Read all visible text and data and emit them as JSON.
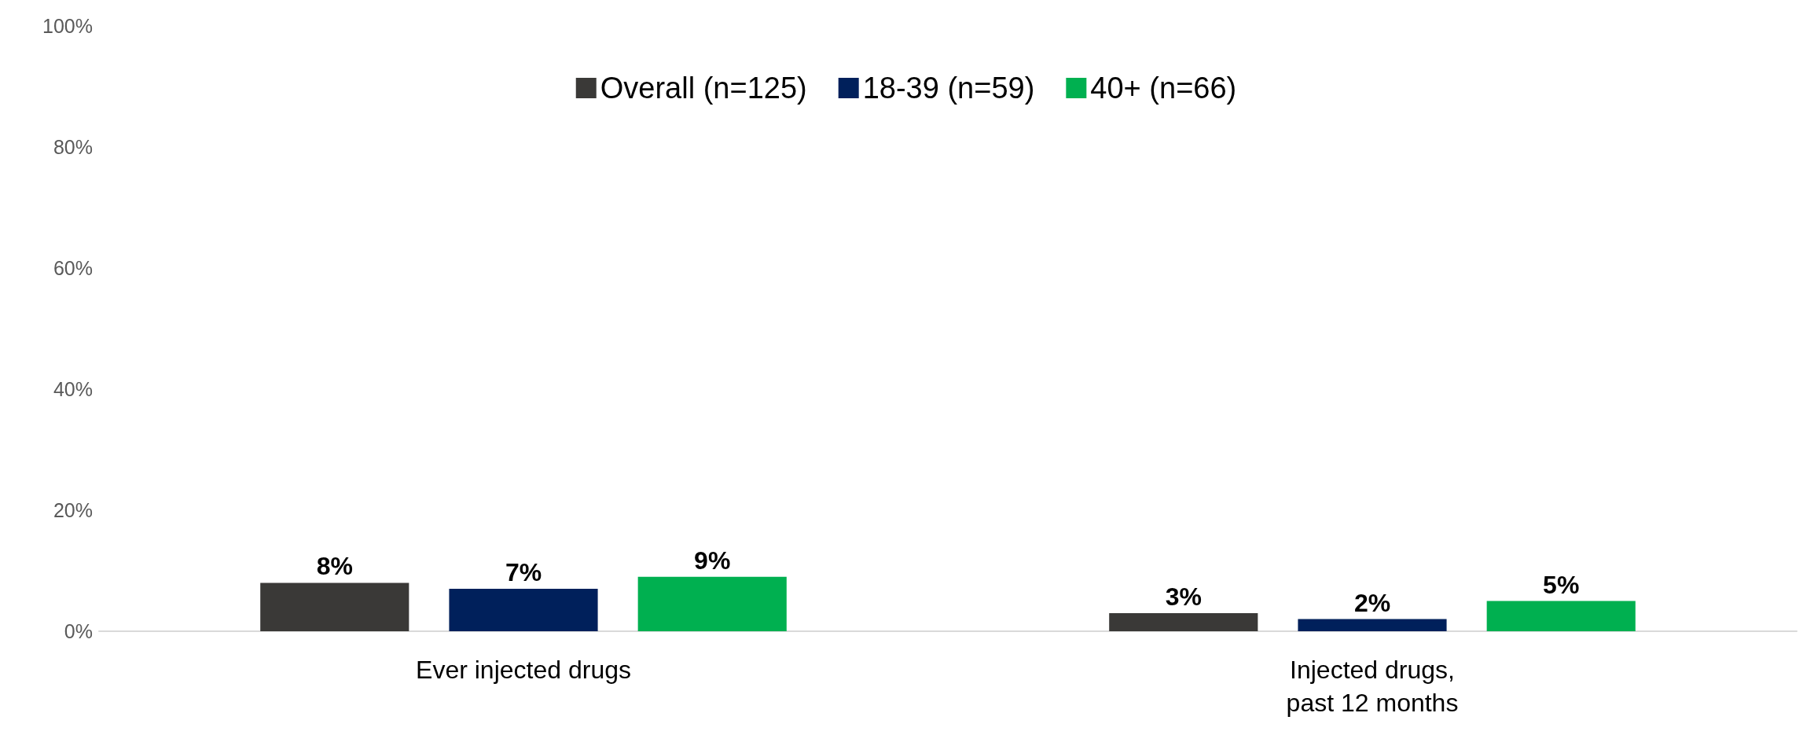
{
  "chart_data": {
    "type": "bar",
    "categories": [
      "Ever injected drugs",
      "Injected drugs,\npast 12 months"
    ],
    "series": [
      {
        "name": "Overall (n=125)",
        "color": "#3a3937",
        "values": [
          8,
          3
        ],
        "value_labels": [
          "8%",
          "3%"
        ]
      },
      {
        "name": "18-39 (n=59)",
        "color": "#00205b",
        "values": [
          7,
          2
        ],
        "value_labels": [
          "7%",
          "2%"
        ]
      },
      {
        "name": "40+ (n=66)",
        "color": "#00b050",
        "values": [
          9,
          5
        ],
        "value_labels": [
          "9%",
          "5%"
        ]
      }
    ],
    "ylim": [
      0,
      100
    ],
    "yticks": [
      {
        "value": 0,
        "label": "0%"
      },
      {
        "value": 20,
        "label": "20%"
      },
      {
        "value": 40,
        "label": "40%"
      },
      {
        "value": 60,
        "label": "60%"
      },
      {
        "value": 80,
        "label": "80%"
      },
      {
        "value": 100,
        "label": "100%"
      }
    ],
    "grid": false,
    "legend": "top"
  }
}
